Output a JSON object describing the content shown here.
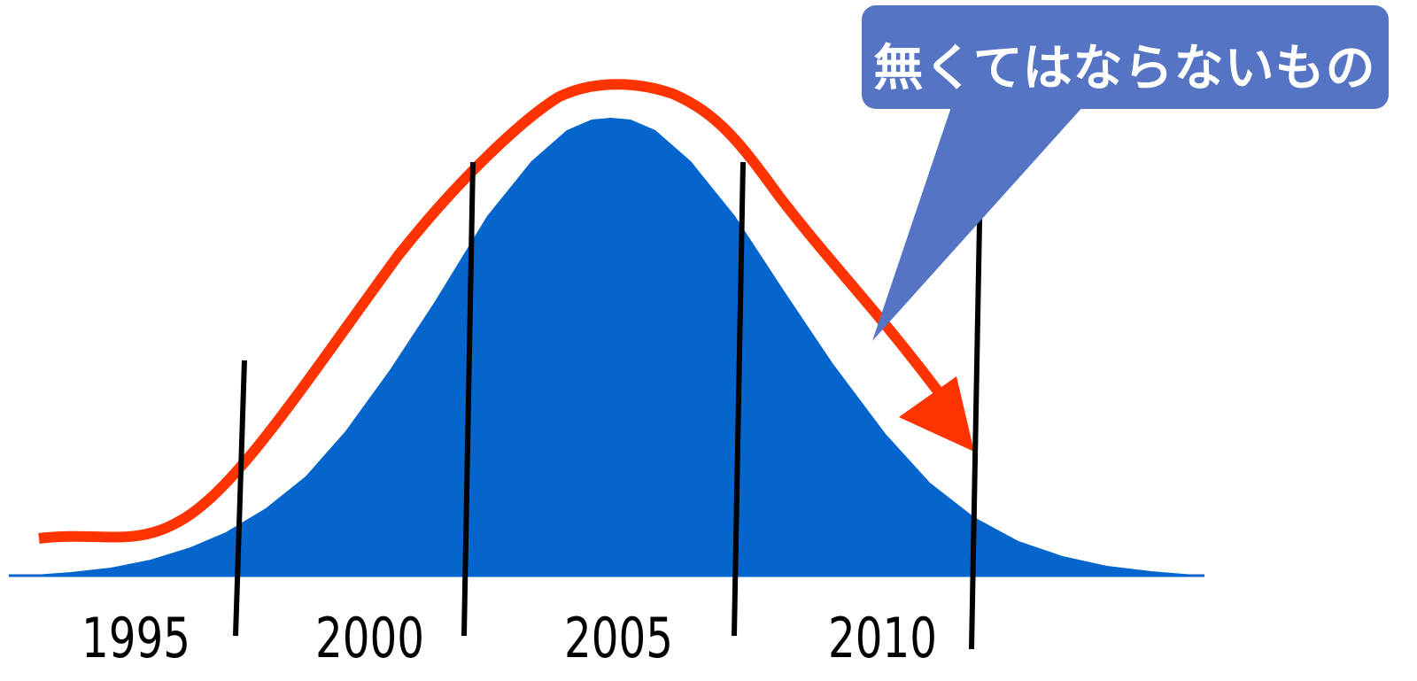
{
  "diagram": {
    "colors": {
      "bell_fill": "#0466cc",
      "trend_line": "#ff3300",
      "divider": "#000000",
      "callout": "#5574c4",
      "baseline": "#0466cc"
    },
    "years": [
      "1995",
      "2000",
      "2005",
      "2010"
    ],
    "callout": {
      "text": "無くてはならないもの"
    }
  }
}
